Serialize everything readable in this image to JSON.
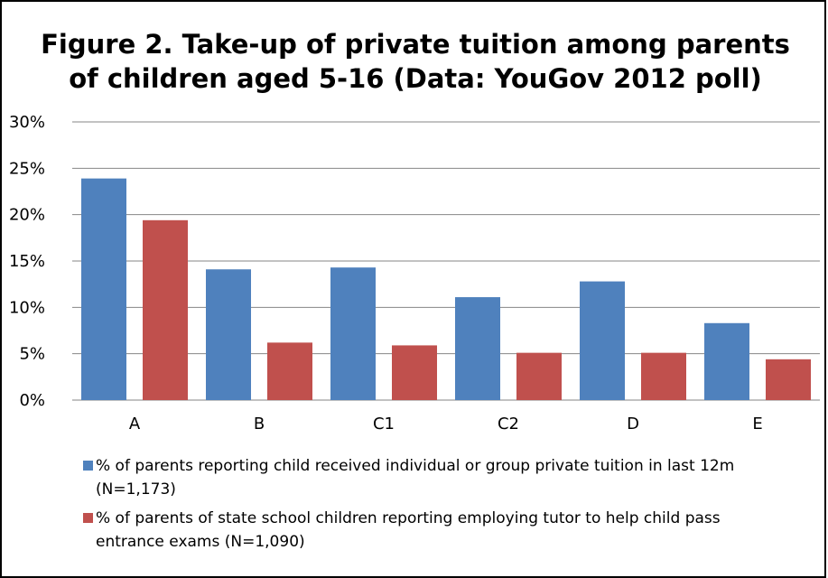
{
  "chart_data": {
    "type": "bar",
    "title": "Figure 2. Take-up of private tuition among parents\nof children aged 5-16 (Data: YouGov 2012 poll)",
    "categories": [
      "A",
      "B",
      "C1",
      "C2",
      "D",
      "E"
    ],
    "series": [
      {
        "name": "% of parents reporting child received individual or group private tuition in last 12m (N=1,173)",
        "color": "#4f81bd",
        "values": [
          23.9,
          14.1,
          14.3,
          11.1,
          12.8,
          8.3
        ]
      },
      {
        "name": "% of parents of state school children reporting employing tutor to help child pass entrance exams (N=1,090)",
        "color": "#c0504d",
        "values": [
          19.4,
          6.2,
          5.9,
          5.1,
          5.1,
          4.4
        ]
      }
    ],
    "ylim": [
      0,
      30
    ],
    "yticks": [
      "0%",
      "5%",
      "10%",
      "15%",
      "20%",
      "25%",
      "30%"
    ],
    "grid": true,
    "legend_position": "bottom"
  }
}
